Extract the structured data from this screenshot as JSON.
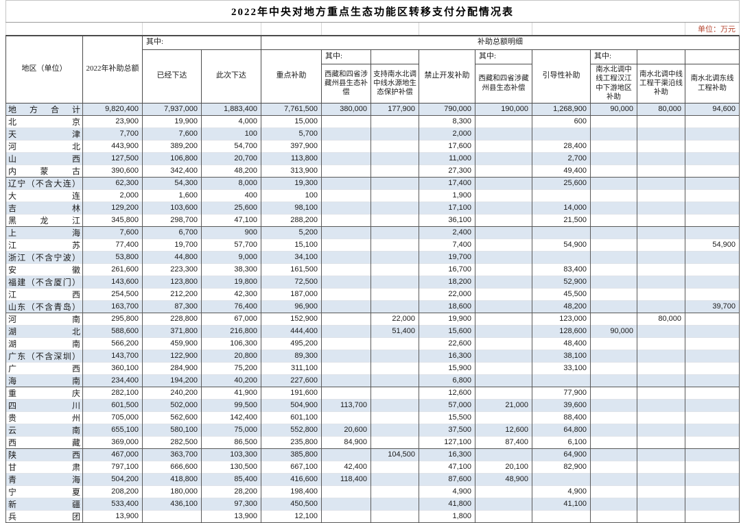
{
  "title": "2022年中央对地方重点生态功能区转移支付分配情况表",
  "unit_label": "单位：万元",
  "colors": {
    "stripe": "#dce6f1",
    "unit_text": "#b5452f",
    "grid_dark": "#585858",
    "grid_light": "#dfe3e9"
  },
  "header": {
    "region": "地区（单位）",
    "total2022": "2022年补助总额",
    "among": "其中:",
    "already_issued": "已经下达",
    "this_issued": "此次下达",
    "detail_title": "补助总额明细",
    "key_subsidy": "重点补助",
    "tibet_eco_key": "西藏和四省涉藏州县生态补偿",
    "snwd_source_protect": "支持南水北调中线水源地生态保护补偿",
    "prohibit_dev": "禁止开发补助",
    "tibet_eco_prohibit": "西藏和四省涉藏州县生态补偿",
    "guidance": "引导性补助",
    "snwd_hanjiang": "南水北调中线工程汉江中下游地区补助",
    "snwd_main_canal": "南水北调中线工程干渠沿线补助",
    "snwd_east_route": "南水北调东线工程补助"
  },
  "rows": [
    {
      "region": "地方合计",
      "group_start": false,
      "values": [
        "9,820,400",
        "7,937,000",
        "1,883,400",
        "7,761,500",
        "380,000",
        "177,900",
        "790,000",
        "190,000",
        "1,268,900",
        "90,000",
        "80,000",
        "94,600"
      ]
    },
    {
      "region": "北京",
      "group_start": true,
      "values": [
        "23,900",
        "19,900",
        "4,000",
        "15,000",
        "",
        "",
        "8,300",
        "",
        "600",
        "",
        "",
        ""
      ]
    },
    {
      "region": "天津",
      "group_start": false,
      "values": [
        "7,700",
        "7,600",
        "100",
        "5,700",
        "",
        "",
        "2,000",
        "",
        "",
        "",
        "",
        ""
      ]
    },
    {
      "region": "河北",
      "group_start": false,
      "values": [
        "443,900",
        "389,200",
        "54,700",
        "397,900",
        "",
        "",
        "17,600",
        "",
        "28,400",
        "",
        "",
        ""
      ]
    },
    {
      "region": "山西",
      "group_start": false,
      "values": [
        "127,500",
        "106,800",
        "20,700",
        "113,800",
        "",
        "",
        "11,000",
        "",
        "2,700",
        "",
        "",
        ""
      ]
    },
    {
      "region": "内蒙古",
      "group_start": false,
      "values": [
        "390,600",
        "342,400",
        "48,200",
        "313,900",
        "",
        "",
        "27,300",
        "",
        "49,400",
        "",
        "",
        ""
      ]
    },
    {
      "region": "辽宁（不含大连）",
      "group_start": true,
      "values": [
        "62,300",
        "54,300",
        "8,000",
        "19,300",
        "",
        "",
        "17,400",
        "",
        "25,600",
        "",
        "",
        ""
      ]
    },
    {
      "region": "大连",
      "group_start": false,
      "values": [
        "2,000",
        "1,600",
        "400",
        "100",
        "",
        "",
        "1,900",
        "",
        "",
        "",
        "",
        ""
      ]
    },
    {
      "region": "吉林",
      "group_start": false,
      "values": [
        "129,200",
        "103,600",
        "25,600",
        "98,100",
        "",
        "",
        "17,100",
        "",
        "14,000",
        "",
        "",
        ""
      ]
    },
    {
      "region": "黑龙江",
      "group_start": false,
      "values": [
        "345,800",
        "298,700",
        "47,100",
        "288,200",
        "",
        "",
        "36,100",
        "",
        "21,500",
        "",
        "",
        ""
      ]
    },
    {
      "region": "上海",
      "group_start": true,
      "values": [
        "7,600",
        "6,700",
        "900",
        "5,200",
        "",
        "",
        "2,400",
        "",
        "",
        "",
        "",
        ""
      ]
    },
    {
      "region": "江苏",
      "group_start": false,
      "values": [
        "77,400",
        "19,700",
        "57,700",
        "15,100",
        "",
        "",
        "7,400",
        "",
        "54,900",
        "",
        "",
        "54,900"
      ]
    },
    {
      "region": "浙江（不含宁波）",
      "group_start": false,
      "values": [
        "53,800",
        "44,800",
        "9,000",
        "34,100",
        "",
        "",
        "19,700",
        "",
        "",
        "",
        "",
        ""
      ]
    },
    {
      "region": "安徽",
      "group_start": false,
      "values": [
        "261,600",
        "223,300",
        "38,300",
        "161,500",
        "",
        "",
        "16,700",
        "",
        "83,400",
        "",
        "",
        ""
      ]
    },
    {
      "region": "福建（不含厦门）",
      "group_start": false,
      "values": [
        "143,600",
        "123,800",
        "19,800",
        "72,500",
        "",
        "",
        "18,200",
        "",
        "52,900",
        "",
        "",
        ""
      ]
    },
    {
      "region": "江西",
      "group_start": false,
      "values": [
        "254,500",
        "212,200",
        "42,300",
        "187,000",
        "",
        "",
        "22,000",
        "",
        "45,500",
        "",
        "",
        ""
      ]
    },
    {
      "region": "山东（不含青岛）",
      "group_start": false,
      "values": [
        "163,700",
        "87,300",
        "76,400",
        "96,900",
        "",
        "",
        "18,600",
        "",
        "48,200",
        "",
        "",
        "39,700"
      ]
    },
    {
      "region": "河南",
      "group_start": true,
      "values": [
        "295,800",
        "228,800",
        "67,000",
        "152,900",
        "",
        "22,000",
        "19,900",
        "",
        "123,000",
        "",
        "80,000",
        ""
      ]
    },
    {
      "region": "湖北",
      "group_start": false,
      "values": [
        "588,600",
        "371,800",
        "216,800",
        "444,400",
        "",
        "51,400",
        "15,600",
        "",
        "128,600",
        "90,000",
        "",
        ""
      ]
    },
    {
      "region": "湖南",
      "group_start": false,
      "values": [
        "566,200",
        "459,900",
        "106,300",
        "495,200",
        "",
        "",
        "22,600",
        "",
        "48,400",
        "",
        "",
        ""
      ]
    },
    {
      "region": "广东（不含深圳）",
      "group_start": false,
      "values": [
        "143,700",
        "122,900",
        "20,800",
        "89,300",
        "",
        "",
        "16,300",
        "",
        "38,100",
        "",
        "",
        ""
      ]
    },
    {
      "region": "广西",
      "group_start": false,
      "values": [
        "360,100",
        "284,900",
        "75,200",
        "311,100",
        "",
        "",
        "15,900",
        "",
        "33,100",
        "",
        "",
        ""
      ]
    },
    {
      "region": "海南",
      "group_start": false,
      "values": [
        "234,400",
        "194,200",
        "40,200",
        "227,600",
        "",
        "",
        "6,800",
        "",
        "",
        "",
        "",
        ""
      ]
    },
    {
      "region": "重庆",
      "group_start": true,
      "values": [
        "282,100",
        "240,200",
        "41,900",
        "191,600",
        "",
        "",
        "12,600",
        "",
        "77,900",
        "",
        "",
        ""
      ]
    },
    {
      "region": "四川",
      "group_start": false,
      "values": [
        "601,500",
        "502,000",
        "99,500",
        "504,900",
        "113,700",
        "",
        "57,000",
        "21,000",
        "39,600",
        "",
        "",
        ""
      ]
    },
    {
      "region": "贵州",
      "group_start": false,
      "values": [
        "705,000",
        "562,600",
        "142,400",
        "601,100",
        "",
        "",
        "15,500",
        "",
        "88,400",
        "",
        "",
        ""
      ]
    },
    {
      "region": "云南",
      "group_start": false,
      "values": [
        "655,100",
        "580,100",
        "75,000",
        "552,800",
        "20,600",
        "",
        "37,500",
        "12,600",
        "64,800",
        "",
        "",
        ""
      ]
    },
    {
      "region": "西藏",
      "group_start": false,
      "values": [
        "369,000",
        "282,500",
        "86,500",
        "235,800",
        "84,900",
        "",
        "127,100",
        "87,400",
        "6,100",
        "",
        "",
        ""
      ]
    },
    {
      "region": "陕西",
      "group_start": true,
      "values": [
        "467,000",
        "363,700",
        "103,300",
        "385,800",
        "",
        "104,500",
        "16,300",
        "",
        "64,900",
        "",
        "",
        ""
      ]
    },
    {
      "region": "甘肃",
      "group_start": false,
      "values": [
        "797,100",
        "666,600",
        "130,500",
        "667,100",
        "42,400",
        "",
        "47,100",
        "20,100",
        "82,900",
        "",
        "",
        ""
      ]
    },
    {
      "region": "青海",
      "group_start": false,
      "values": [
        "504,200",
        "418,800",
        "85,400",
        "416,600",
        "118,400",
        "",
        "87,600",
        "48,900",
        "",
        "",
        "",
        ""
      ]
    },
    {
      "region": "宁夏",
      "group_start": false,
      "values": [
        "208,200",
        "180,000",
        "28,200",
        "198,400",
        "",
        "",
        "4,900",
        "",
        "4,900",
        "",
        "",
        ""
      ]
    },
    {
      "region": "新疆",
      "group_start": false,
      "values": [
        "533,400",
        "436,100",
        "97,300",
        "450,500",
        "",
        "",
        "41,800",
        "",
        "41,100",
        "",
        "",
        ""
      ]
    },
    {
      "region": "兵团",
      "group_start": false,
      "values": [
        "13,900",
        "",
        "13,900",
        "12,100",
        "",
        "",
        "1,800",
        "",
        "",
        "",
        "",
        ""
      ]
    }
  ]
}
